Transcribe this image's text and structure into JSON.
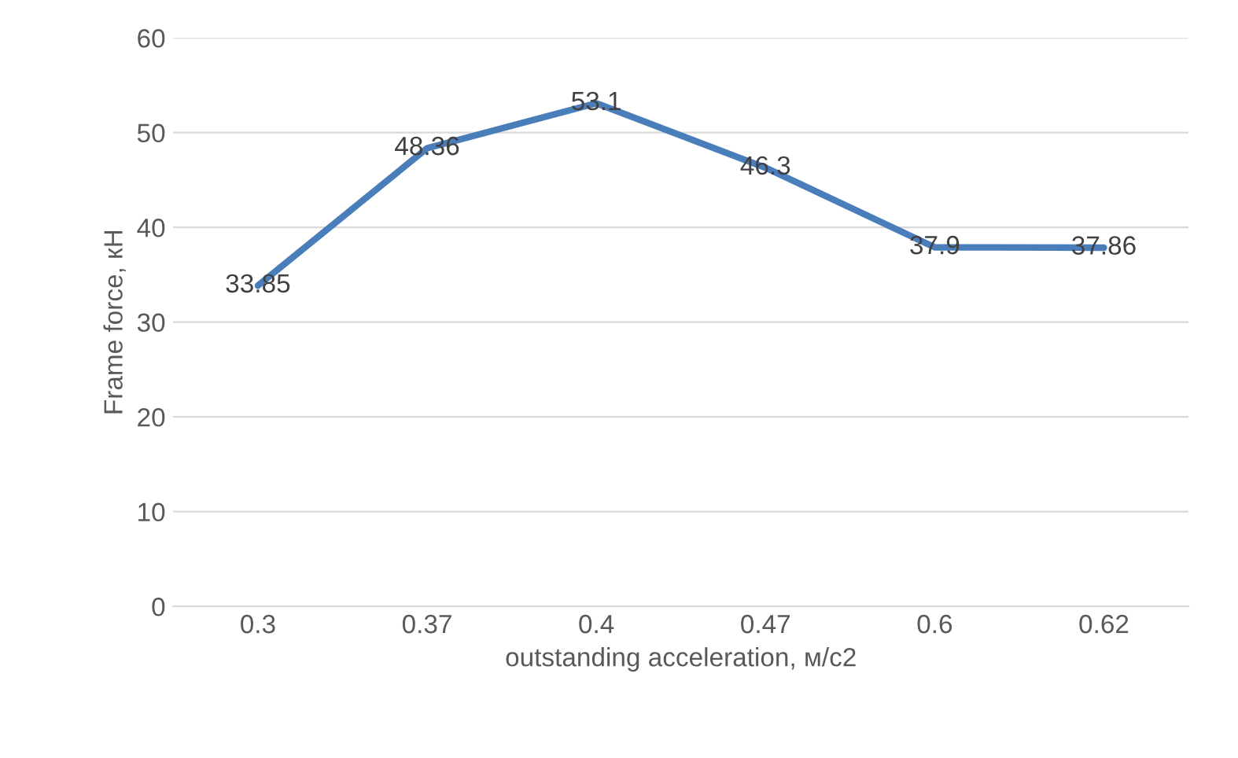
{
  "chart_data": {
    "type": "line",
    "xlabel": "outstanding acceleration, м/с2",
    "ylabel": "Frame force, кН",
    "categories": [
      "0.3",
      "0.37",
      "0.4",
      "0.47",
      "0.6",
      "0.62"
    ],
    "series": [
      {
        "color": "#4a7ebb",
        "values": [
          33.85,
          48.36,
          53.1,
          46.3,
          37.9,
          37.86
        ]
      }
    ],
    "ylim": [
      0,
      60
    ],
    "yticks": [
      0,
      10,
      20,
      30,
      40,
      50,
      60
    ],
    "grid": "y",
    "data_labels": true,
    "marker": "none",
    "line_style": "solid"
  }
}
